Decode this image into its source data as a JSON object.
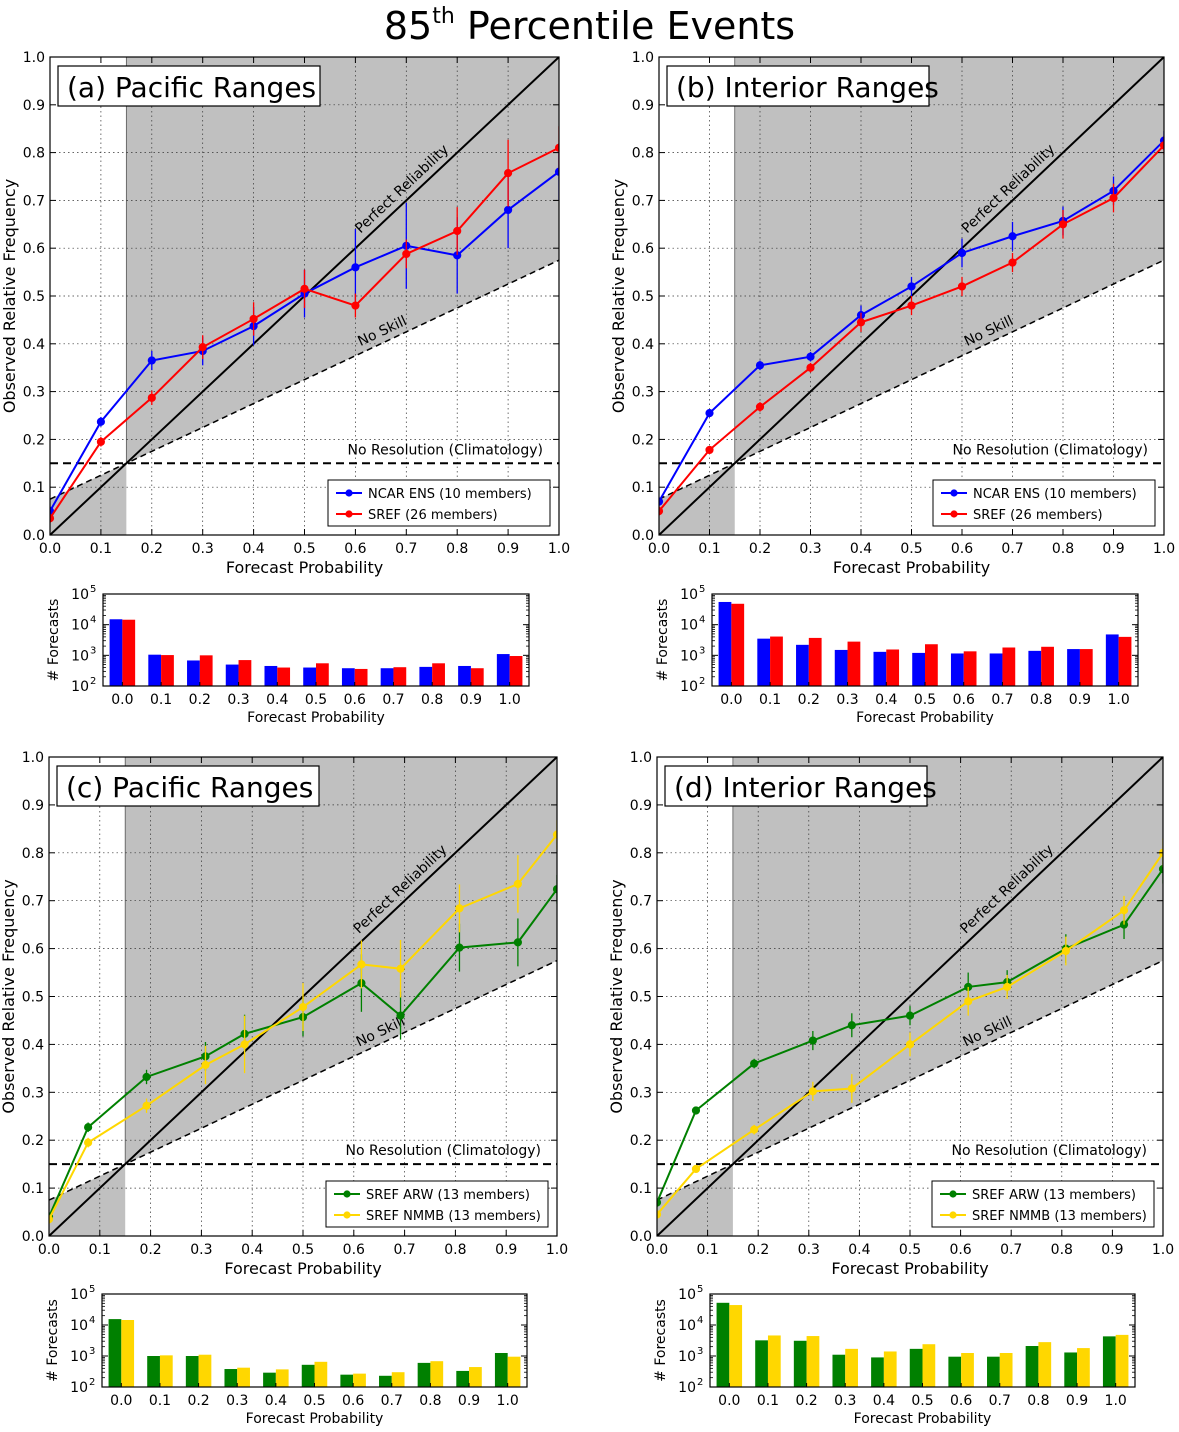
{
  "figure": {
    "title_base": "85",
    "title_sup": "th",
    "title_rest": " Percentile Events"
  },
  "colors": {
    "ncar": "#0000ff",
    "sref": "#ff0000",
    "arw": "#008000",
    "nmmb": "#ffd700",
    "shade": "#c0c0c0"
  },
  "chart_data": [
    {
      "type": "line",
      "panel": "a",
      "title": "(a) Pacific Ranges",
      "xlabel": "Forecast Probability",
      "ylabel": "Observed Relative Frequency",
      "xlim": [
        0,
        1
      ],
      "ylim": [
        0,
        1
      ],
      "xticks": [
        "0.0",
        "0.1",
        "0.2",
        "0.3",
        "0.4",
        "0.5",
        "0.6",
        "0.7",
        "0.8",
        "0.9",
        "1.0"
      ],
      "yticks": [
        "0.0",
        "0.1",
        "0.2",
        "0.3",
        "0.4",
        "0.5",
        "0.6",
        "0.7",
        "0.8",
        "0.9",
        "1.0"
      ],
      "climatology": 0.15,
      "annotations": {
        "perfect": "Perfect Reliability",
        "noskill": "No Skill",
        "noresolution": "No Resolution (Climatology)"
      },
      "legend_position": "lower-right",
      "series": [
        {
          "name": "NCAR ENS (10 members)",
          "color_key": "ncar",
          "x": [
            0.0,
            0.1,
            0.2,
            0.3,
            0.4,
            0.5,
            0.6,
            0.7,
            0.8,
            0.9,
            1.0
          ],
          "y": [
            0.05,
            0.237,
            0.365,
            0.385,
            0.437,
            0.505,
            0.56,
            0.605,
            0.585,
            0.68,
            0.76
          ],
          "err": [
            0.01,
            0.01,
            0.02,
            0.03,
            0.04,
            0.05,
            0.08,
            0.09,
            0.08,
            0.08,
            0.06
          ]
        },
        {
          "name": "SREF (26 members)",
          "color_key": "sref",
          "x": [
            0.0,
            0.1,
            0.2,
            0.3,
            0.4,
            0.5,
            0.6,
            0.7,
            0.8,
            0.9,
            1.0
          ],
          "y": [
            0.035,
            0.195,
            0.287,
            0.393,
            0.452,
            0.515,
            0.48,
            0.588,
            0.636,
            0.757,
            0.81
          ],
          "err": [
            0.01,
            0.01,
            0.015,
            0.025,
            0.035,
            0.04,
            0.025,
            0.03,
            0.05,
            0.07,
            0.045
          ]
        }
      ],
      "histogram": {
        "xlabel": "Forecast Probability",
        "ylabel": "# Forecasts",
        "categories": [
          "0.0",
          "0.1",
          "0.2",
          "0.3",
          "0.4",
          "0.5",
          "0.6",
          "0.7",
          "0.8",
          "0.9",
          "1.0"
        ],
        "yticks": [
          "10",
          "10",
          "10",
          "10"
        ],
        "ytick_exps": [
          "2",
          "3",
          "4",
          "5"
        ],
        "ylog": [
          2,
          5
        ],
        "series": [
          {
            "color_key": "ncar",
            "values": [
              15000,
              1050,
              680,
              500,
              450,
              400,
              380,
              380,
              420,
              450,
              1100
            ]
          },
          {
            "color_key": "sref",
            "values": [
              14500,
              1020,
              1000,
              700,
              400,
              550,
              360,
              410,
              550,
              380,
              950
            ]
          }
        ]
      }
    },
    {
      "type": "line",
      "panel": "b",
      "title": "(b) Interior Ranges",
      "xlabel": "Forecast Probability",
      "ylabel": "Observed Relative Frequency",
      "xlim": [
        0,
        1
      ],
      "ylim": [
        0,
        1
      ],
      "xticks": [
        "0.0",
        "0.1",
        "0.2",
        "0.3",
        "0.4",
        "0.5",
        "0.6",
        "0.7",
        "0.8",
        "0.9",
        "1.0"
      ],
      "yticks": [
        "0.0",
        "0.1",
        "0.2",
        "0.3",
        "0.4",
        "0.5",
        "0.6",
        "0.7",
        "0.8",
        "0.9",
        "1.0"
      ],
      "climatology": 0.15,
      "annotations": {
        "perfect": "Perfect Reliability",
        "noskill": "No Skill",
        "noresolution": "No Resolution (Climatology)"
      },
      "legend_position": "lower-right",
      "series": [
        {
          "name": "NCAR ENS (10 members)",
          "color_key": "ncar",
          "x": [
            0.0,
            0.1,
            0.2,
            0.3,
            0.4,
            0.5,
            0.6,
            0.7,
            0.8,
            0.9,
            1.0
          ],
          "y": [
            0.07,
            0.255,
            0.355,
            0.373,
            0.46,
            0.52,
            0.59,
            0.625,
            0.657,
            0.72,
            0.825
          ],
          "err": [
            0.01,
            0.008,
            0.01,
            0.01,
            0.02,
            0.02,
            0.03,
            0.03,
            0.03,
            0.03,
            0.02
          ]
        },
        {
          "name": "SREF (26 members)",
          "color_key": "sref",
          "x": [
            0.0,
            0.1,
            0.2,
            0.3,
            0.4,
            0.5,
            0.6,
            0.7,
            0.8,
            0.9,
            1.0
          ],
          "y": [
            0.05,
            0.178,
            0.268,
            0.35,
            0.445,
            0.48,
            0.52,
            0.57,
            0.65,
            0.705,
            0.815
          ],
          "err": [
            0.01,
            0.008,
            0.01,
            0.01,
            0.02,
            0.02,
            0.02,
            0.02,
            0.03,
            0.03,
            0.02
          ]
        }
      ],
      "histogram": {
        "xlabel": "Forecast Probability",
        "ylabel": "# Forecasts",
        "categories": [
          "0.0",
          "0.1",
          "0.2",
          "0.3",
          "0.4",
          "0.5",
          "0.6",
          "0.7",
          "0.8",
          "0.9",
          "1.0"
        ],
        "yticks": [
          "10",
          "10",
          "10",
          "10"
        ],
        "ytick_exps": [
          "2",
          "3",
          "4",
          "5"
        ],
        "ylog": [
          2,
          5
        ],
        "series": [
          {
            "color_key": "ncar",
            "values": [
              55000,
              3500,
              2200,
              1500,
              1300,
              1200,
              1150,
              1150,
              1400,
              1600,
              4800
            ]
          },
          {
            "color_key": "sref",
            "values": [
              48000,
              4100,
              3700,
              2800,
              1550,
              2300,
              1350,
              1800,
              1900,
              1600,
              4000
            ]
          }
        ]
      }
    },
    {
      "type": "line",
      "panel": "c",
      "title": "(c) Pacific Ranges",
      "xlabel": "Forecast Probability",
      "ylabel": "Observed Relative Frequency",
      "xlim": [
        0,
        1
      ],
      "ylim": [
        0,
        1
      ],
      "xticks": [
        "0.0",
        "0.1",
        "0.2",
        "0.3",
        "0.4",
        "0.5",
        "0.6",
        "0.7",
        "0.8",
        "0.9",
        "1.0"
      ],
      "yticks": [
        "0.0",
        "0.1",
        "0.2",
        "0.3",
        "0.4",
        "0.5",
        "0.6",
        "0.7",
        "0.8",
        "0.9",
        "1.0"
      ],
      "climatology": 0.15,
      "annotations": {
        "perfect": "Perfect Reliability",
        "noskill": "No Skill",
        "noresolution": "No Resolution (Climatology)"
      },
      "legend_position": "lower-right",
      "series": [
        {
          "name": "SREF ARW (13 members)",
          "color_key": "arw",
          "x": [
            0.0,
            0.077,
            0.192,
            0.308,
            0.385,
            0.5,
            0.615,
            0.692,
            0.808,
            0.923,
            1.0
          ],
          "y": [
            0.04,
            0.227,
            0.332,
            0.375,
            0.422,
            0.457,
            0.528,
            0.46,
            0.602,
            0.613,
            0.724
          ],
          "err": [
            0.01,
            0.01,
            0.015,
            0.03,
            0.04,
            0.04,
            0.06,
            0.05,
            0.05,
            0.05,
            0.03
          ]
        },
        {
          "name": "SREF NMMB (13 members)",
          "color_key": "nmmb",
          "x": [
            0.0,
            0.077,
            0.192,
            0.308,
            0.385,
            0.5,
            0.615,
            0.692,
            0.808,
            0.923,
            1.0
          ],
          "y": [
            0.035,
            0.195,
            0.272,
            0.357,
            0.4,
            0.478,
            0.567,
            0.558,
            0.684,
            0.735,
            0.838
          ],
          "err": [
            0.01,
            0.01,
            0.015,
            0.04,
            0.06,
            0.05,
            0.05,
            0.06,
            0.05,
            0.06,
            0.03
          ]
        }
      ],
      "histogram": {
        "xlabel": "Forecast Probability",
        "ylabel": "# Forecasts",
        "categories": [
          "0.0",
          "0.1",
          "0.2",
          "0.3",
          "0.4",
          "0.5",
          "0.6",
          "0.7",
          "0.8",
          "0.9",
          "1.0"
        ],
        "yticks": [
          "10",
          "10",
          "10",
          "10"
        ],
        "ytick_exps": [
          "2",
          "3",
          "4",
          "5"
        ],
        "ylog": [
          2,
          5
        ],
        "series": [
          {
            "color_key": "arw",
            "values": [
              15500,
              1000,
              1000,
              380,
              290,
              520,
              250,
              230,
              600,
              330,
              1250
            ]
          },
          {
            "color_key": "nmmb",
            "values": [
              14500,
              1050,
              1100,
              420,
              370,
              650,
              270,
              300,
              680,
              440,
              950
            ]
          }
        ]
      }
    },
    {
      "type": "line",
      "panel": "d",
      "title": "(d) Interior Ranges",
      "xlabel": "Forecast Probability",
      "ylabel": "Observed Relative Frequency",
      "xlim": [
        0,
        1
      ],
      "ylim": [
        0,
        1
      ],
      "xticks": [
        "0.0",
        "0.1",
        "0.2",
        "0.3",
        "0.4",
        "0.5",
        "0.6",
        "0.7",
        "0.8",
        "0.9",
        "1.0"
      ],
      "yticks": [
        "0.0",
        "0.1",
        "0.2",
        "0.3",
        "0.4",
        "0.5",
        "0.6",
        "0.7",
        "0.8",
        "0.9",
        "1.0"
      ],
      "climatology": 0.15,
      "annotations": {
        "perfect": "Perfect Reliability",
        "noskill": "No Skill",
        "noresolution": "No Resolution (Climatology)"
      },
      "legend_position": "lower-right",
      "series": [
        {
          "name": "SREF ARW (13 members)",
          "color_key": "arw",
          "x": [
            0.0,
            0.077,
            0.192,
            0.308,
            0.385,
            0.5,
            0.615,
            0.692,
            0.808,
            0.923,
            1.0
          ],
          "y": [
            0.07,
            0.262,
            0.36,
            0.408,
            0.44,
            0.46,
            0.52,
            0.53,
            0.6,
            0.65,
            0.766
          ],
          "err": [
            0.01,
            0.008,
            0.01,
            0.02,
            0.025,
            0.02,
            0.03,
            0.025,
            0.03,
            0.03,
            0.03
          ]
        },
        {
          "name": "SREF NMMB (13 members)",
          "color_key": "nmmb",
          "x": [
            0.0,
            0.077,
            0.192,
            0.308,
            0.385,
            0.5,
            0.615,
            0.692,
            0.808,
            0.923,
            1.0
          ],
          "y": [
            0.045,
            0.14,
            0.222,
            0.302,
            0.308,
            0.4,
            0.49,
            0.52,
            0.595,
            0.68,
            0.8
          ],
          "err": [
            0.01,
            0.008,
            0.01,
            0.02,
            0.03,
            0.025,
            0.03,
            0.025,
            0.03,
            0.03,
            0.03
          ]
        }
      ],
      "histogram": {
        "xlabel": "Forecast Probability",
        "ylabel": "# Forecasts",
        "categories": [
          "0.0",
          "0.1",
          "0.2",
          "0.3",
          "0.4",
          "0.5",
          "0.6",
          "0.7",
          "0.8",
          "0.9",
          "1.0"
        ],
        "yticks": [
          "10",
          "10",
          "10",
          "10"
        ],
        "ytick_exps": [
          "2",
          "3",
          "4",
          "5"
        ],
        "ylog": [
          2,
          5
        ],
        "series": [
          {
            "color_key": "arw",
            "values": [
              52000,
              3200,
              3100,
              1100,
              900,
              1700,
              950,
              950,
              2100,
              1300,
              4300
            ]
          },
          {
            "color_key": "nmmb",
            "values": [
              44000,
              4600,
              4400,
              1700,
              1400,
              2400,
              1250,
              1250,
              2800,
              1800,
              4800
            ]
          }
        ]
      }
    }
  ]
}
